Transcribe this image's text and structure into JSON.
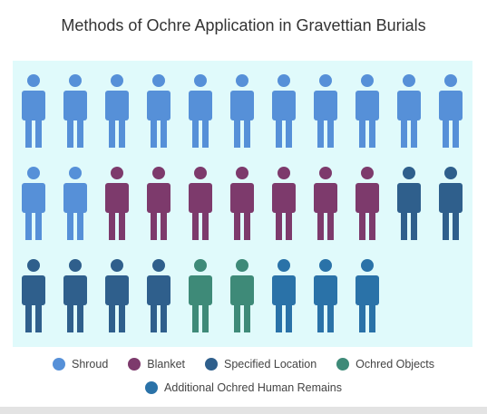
{
  "chart_data": {
    "type": "pictogram",
    "title": "Methods of Ochre Application in Gravettian Burials",
    "unit": "burial",
    "series": [
      {
        "name": "Shroud",
        "value": 13,
        "color": "#5690d8"
      },
      {
        "name": "Blanket",
        "value": 7,
        "color": "#7d3a6c"
      },
      {
        "name": "Specified Location",
        "value": 6,
        "color": "#2f5f8c"
      },
      {
        "name": "Ochred Objects",
        "value": 2,
        "color": "#3e8a78"
      },
      {
        "name": "Additional Ochred Human Remains",
        "value": 3,
        "color": "#2a72a8"
      }
    ],
    "icons_per_row": 11,
    "background_color": "#e0fafb",
    "legend_position": "bottom"
  }
}
